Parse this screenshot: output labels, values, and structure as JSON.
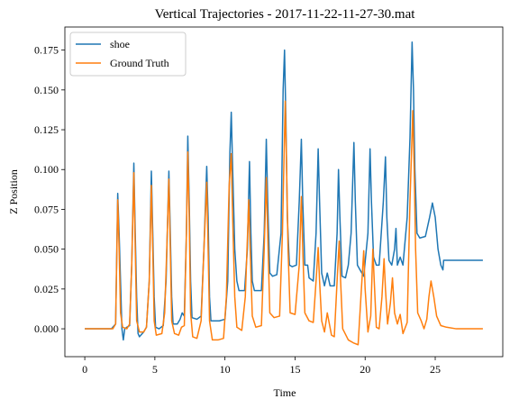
{
  "chart_data": {
    "type": "line",
    "title": "Vertical Trajectories - 2017-11-22-11-27-30.mat",
    "xlabel": "Time",
    "ylabel": "Z Position",
    "xlim": [
      -1.42,
      29.82
    ],
    "ylim": [
      -0.0175,
      0.1895
    ],
    "xticks": [
      0,
      5,
      10,
      15,
      20,
      25
    ],
    "yticks": [
      0.0,
      0.025,
      0.05,
      0.075,
      0.1,
      0.125,
      0.15,
      0.175
    ],
    "xtick_labels": [
      "0",
      "5",
      "10",
      "15",
      "20",
      "25"
    ],
    "ytick_labels": [
      "0.000",
      "0.025",
      "0.050",
      "0.075",
      "0.100",
      "0.125",
      "0.150",
      "0.175"
    ],
    "grid": false,
    "legend": "top-left",
    "series": [
      {
        "name": "shoe",
        "color": "#1f77b4",
        "points": [
          [
            0.0,
            0.0
          ],
          [
            1.0,
            0.0
          ],
          [
            1.9,
            0.0
          ],
          [
            2.0,
            0.001
          ],
          [
            2.2,
            0.003
          ],
          [
            2.35,
            0.085
          ],
          [
            2.45,
            0.06
          ],
          [
            2.55,
            0.03
          ],
          [
            2.65,
            0.0
          ],
          [
            2.75,
            -0.007
          ],
          [
            2.85,
            0.0
          ],
          [
            3.0,
            0.001
          ],
          [
            3.2,
            0.002
          ],
          [
            3.35,
            0.04
          ],
          [
            3.5,
            0.104
          ],
          [
            3.6,
            0.06
          ],
          [
            3.7,
            0.02
          ],
          [
            3.8,
            -0.003
          ],
          [
            3.9,
            -0.005
          ],
          [
            4.0,
            -0.004
          ],
          [
            4.2,
            -0.002
          ],
          [
            4.4,
            0.001
          ],
          [
            4.6,
            0.03
          ],
          [
            4.75,
            0.099
          ],
          [
            4.85,
            0.06
          ],
          [
            4.95,
            0.02
          ],
          [
            5.05,
            0.001
          ],
          [
            5.3,
            0.0
          ],
          [
            5.6,
            0.002
          ],
          [
            5.8,
            0.03
          ],
          [
            6.0,
            0.099
          ],
          [
            6.1,
            0.06
          ],
          [
            6.2,
            0.02
          ],
          [
            6.3,
            0.003
          ],
          [
            6.6,
            0.003
          ],
          [
            6.8,
            0.006
          ],
          [
            6.95,
            0.01
          ],
          [
            7.1,
            0.008
          ],
          [
            7.25,
            0.06
          ],
          [
            7.35,
            0.121
          ],
          [
            7.45,
            0.08
          ],
          [
            7.55,
            0.03
          ],
          [
            7.65,
            0.007
          ],
          [
            8.0,
            0.006
          ],
          [
            8.3,
            0.008
          ],
          [
            8.5,
            0.05
          ],
          [
            8.7,
            0.102
          ],
          [
            8.8,
            0.07
          ],
          [
            8.9,
            0.02
          ],
          [
            9.0,
            0.005
          ],
          [
            9.6,
            0.005
          ],
          [
            10.0,
            0.006
          ],
          [
            10.2,
            0.03
          ],
          [
            10.35,
            0.11
          ],
          [
            10.45,
            0.136
          ],
          [
            10.55,
            0.1
          ],
          [
            10.7,
            0.05
          ],
          [
            10.85,
            0.03
          ],
          [
            11.0,
            0.024
          ],
          [
            11.4,
            0.024
          ],
          [
            11.6,
            0.05
          ],
          [
            11.75,
            0.105
          ],
          [
            11.85,
            0.06
          ],
          [
            11.95,
            0.03
          ],
          [
            12.1,
            0.024
          ],
          [
            12.6,
            0.024
          ],
          [
            12.8,
            0.06
          ],
          [
            12.95,
            0.119
          ],
          [
            13.05,
            0.08
          ],
          [
            13.2,
            0.035
          ],
          [
            13.4,
            0.033
          ],
          [
            13.7,
            0.034
          ],
          [
            14.0,
            0.06
          ],
          [
            14.15,
            0.15
          ],
          [
            14.25,
            0.175
          ],
          [
            14.35,
            0.13
          ],
          [
            14.45,
            0.07
          ],
          [
            14.6,
            0.04
          ],
          [
            14.8,
            0.039
          ],
          [
            15.1,
            0.04
          ],
          [
            15.3,
            0.08
          ],
          [
            15.45,
            0.119
          ],
          [
            15.55,
            0.08
          ],
          [
            15.7,
            0.04
          ],
          [
            15.9,
            0.04
          ],
          [
            16.0,
            0.032
          ],
          [
            16.3,
            0.03
          ],
          [
            16.5,
            0.06
          ],
          [
            16.65,
            0.113
          ],
          [
            16.75,
            0.08
          ],
          [
            16.9,
            0.035
          ],
          [
            17.1,
            0.027
          ],
          [
            17.3,
            0.035
          ],
          [
            17.5,
            0.027
          ],
          [
            17.8,
            0.027
          ],
          [
            18.0,
            0.06
          ],
          [
            18.1,
            0.1
          ],
          [
            18.2,
            0.07
          ],
          [
            18.35,
            0.033
          ],
          [
            18.6,
            0.032
          ],
          [
            18.8,
            0.04
          ],
          [
            19.0,
            0.06
          ],
          [
            19.2,
            0.117
          ],
          [
            19.3,
            0.08
          ],
          [
            19.45,
            0.04
          ],
          [
            19.7,
            0.036
          ],
          [
            19.9,
            0.033
          ],
          [
            20.2,
            0.06
          ],
          [
            20.35,
            0.113
          ],
          [
            20.45,
            0.08
          ],
          [
            20.6,
            0.045
          ],
          [
            20.8,
            0.04
          ],
          [
            21.0,
            0.04
          ],
          [
            21.3,
            0.08
          ],
          [
            21.45,
            0.108
          ],
          [
            21.55,
            0.07
          ],
          [
            21.7,
            0.043
          ],
          [
            21.9,
            0.04
          ],
          [
            22.1,
            0.05
          ],
          [
            22.2,
            0.063
          ],
          [
            22.3,
            0.04
          ],
          [
            22.5,
            0.045
          ],
          [
            22.7,
            0.04
          ],
          [
            23.0,
            0.07
          ],
          [
            23.2,
            0.12
          ],
          [
            23.35,
            0.18
          ],
          [
            23.45,
            0.15
          ],
          [
            23.55,
            0.1
          ],
          [
            23.7,
            0.06
          ],
          [
            23.9,
            0.057
          ],
          [
            24.3,
            0.058
          ],
          [
            24.6,
            0.07
          ],
          [
            24.8,
            0.079
          ],
          [
            25.0,
            0.07
          ],
          [
            25.2,
            0.05
          ],
          [
            25.4,
            0.04
          ],
          [
            25.55,
            0.037
          ],
          [
            25.6,
            0.043
          ],
          [
            28.4,
            0.043
          ]
        ]
      },
      {
        "name": "Ground Truth",
        "color": "#ff7f0e",
        "points": [
          [
            0.0,
            0.0
          ],
          [
            1.0,
            0.0
          ],
          [
            2.0,
            0.0
          ],
          [
            2.2,
            0.003
          ],
          [
            2.35,
            0.081
          ],
          [
            2.45,
            0.05
          ],
          [
            2.55,
            0.01
          ],
          [
            2.7,
            0.001
          ],
          [
            3.0,
            0.0
          ],
          [
            3.2,
            0.003
          ],
          [
            3.35,
            0.04
          ],
          [
            3.5,
            0.098
          ],
          [
            3.6,
            0.05
          ],
          [
            3.7,
            0.005
          ],
          [
            3.9,
            -0.002
          ],
          [
            4.2,
            -0.002
          ],
          [
            4.4,
            0.001
          ],
          [
            4.6,
            0.03
          ],
          [
            4.75,
            0.09
          ],
          [
            4.85,
            0.05
          ],
          [
            4.95,
            0.005
          ],
          [
            5.1,
            -0.004
          ],
          [
            5.5,
            -0.003
          ],
          [
            5.7,
            0.01
          ],
          [
            5.85,
            0.05
          ],
          [
            6.0,
            0.094
          ],
          [
            6.1,
            0.05
          ],
          [
            6.2,
            0.005
          ],
          [
            6.4,
            -0.003
          ],
          [
            6.7,
            -0.004
          ],
          [
            6.9,
            0.001
          ],
          [
            7.1,
            0.002
          ],
          [
            7.25,
            0.06
          ],
          [
            7.35,
            0.111
          ],
          [
            7.45,
            0.07
          ],
          [
            7.55,
            0.01
          ],
          [
            7.7,
            -0.005
          ],
          [
            8.0,
            -0.006
          ],
          [
            8.3,
            0.005
          ],
          [
            8.5,
            0.05
          ],
          [
            8.7,
            0.092
          ],
          [
            8.8,
            0.05
          ],
          [
            8.9,
            0.005
          ],
          [
            9.1,
            -0.007
          ],
          [
            9.5,
            -0.007
          ],
          [
            9.9,
            -0.006
          ],
          [
            10.1,
            0.02
          ],
          [
            10.3,
            0.09
          ],
          [
            10.45,
            0.11
          ],
          [
            10.55,
            0.07
          ],
          [
            10.7,
            0.02
          ],
          [
            10.85,
            0.001
          ],
          [
            11.2,
            -0.001
          ],
          [
            11.45,
            0.02
          ],
          [
            11.7,
            0.081
          ],
          [
            11.8,
            0.05
          ],
          [
            11.95,
            0.008
          ],
          [
            12.2,
            0.001
          ],
          [
            12.6,
            0.002
          ],
          [
            12.8,
            0.05
          ],
          [
            12.95,
            0.095
          ],
          [
            13.05,
            0.06
          ],
          [
            13.2,
            0.01
          ],
          [
            13.5,
            0.007
          ],
          [
            13.9,
            0.008
          ],
          [
            14.1,
            0.06
          ],
          [
            14.3,
            0.143
          ],
          [
            14.4,
            0.1
          ],
          [
            14.5,
            0.05
          ],
          [
            14.65,
            0.01
          ],
          [
            15.0,
            0.009
          ],
          [
            15.3,
            0.04
          ],
          [
            15.45,
            0.083
          ],
          [
            15.55,
            0.05
          ],
          [
            15.7,
            0.01
          ],
          [
            16.0,
            0.005
          ],
          [
            16.3,
            0.004
          ],
          [
            16.5,
            0.03
          ],
          [
            16.65,
            0.051
          ],
          [
            16.75,
            0.03
          ],
          [
            16.9,
            0.005
          ],
          [
            17.1,
            -0.002
          ],
          [
            17.3,
            0.01
          ],
          [
            17.6,
            -0.004
          ],
          [
            17.8,
            -0.005
          ],
          [
            18.0,
            0.03
          ],
          [
            18.15,
            0.055
          ],
          [
            18.25,
            0.03
          ],
          [
            18.4,
            0.0
          ],
          [
            18.8,
            -0.007
          ],
          [
            19.2,
            -0.009
          ],
          [
            19.5,
            -0.01
          ],
          [
            19.7,
            0.02
          ],
          [
            19.9,
            0.049
          ],
          [
            20.0,
            0.025
          ],
          [
            20.2,
            -0.002
          ],
          [
            20.4,
            0.008
          ],
          [
            20.55,
            0.05
          ],
          [
            20.65,
            0.03
          ],
          [
            20.8,
            0.001
          ],
          [
            21.0,
            0.0
          ],
          [
            21.2,
            0.02
          ],
          [
            21.35,
            0.044
          ],
          [
            21.45,
            0.025
          ],
          [
            21.6,
            0.003
          ],
          [
            21.8,
            0.016
          ],
          [
            21.95,
            0.032
          ],
          [
            22.1,
            0.01
          ],
          [
            22.3,
            0.003
          ],
          [
            22.5,
            0.009
          ],
          [
            22.7,
            -0.003
          ],
          [
            23.0,
            0.004
          ],
          [
            23.2,
            0.08
          ],
          [
            23.4,
            0.137
          ],
          [
            23.5,
            0.1
          ],
          [
            23.6,
            0.05
          ],
          [
            23.75,
            0.01
          ],
          [
            24.0,
            0.005
          ],
          [
            24.2,
            0.0
          ],
          [
            24.4,
            0.006
          ],
          [
            24.55,
            0.02
          ],
          [
            24.7,
            0.03
          ],
          [
            24.9,
            0.02
          ],
          [
            25.1,
            0.008
          ],
          [
            25.4,
            0.002
          ],
          [
            25.8,
            0.001
          ],
          [
            26.5,
            0.0
          ],
          [
            27.5,
            0.0
          ],
          [
            28.4,
            0.0
          ]
        ]
      }
    ]
  }
}
